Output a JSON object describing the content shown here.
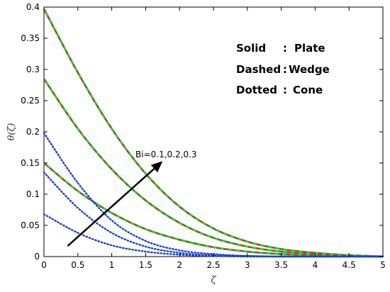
{
  "chart_data": {
    "type": "line",
    "xlabel": "ζ",
    "ylabel": "θ(ζ)",
    "xlim": [
      0,
      5
    ],
    "ylim": [
      0,
      0.4
    ],
    "xticks": [
      "0",
      "0.5",
      "1",
      "1.5",
      "2",
      "2.5",
      "3",
      "3.5",
      "4",
      "4.5",
      "5"
    ],
    "yticks": [
      "0",
      "0.05",
      "0.1",
      "0.15",
      "0.2",
      "0.25",
      "0.3",
      "0.35",
      "0.4"
    ],
    "grid": false,
    "legend": [
      {
        "style": "Solid",
        "sep": ":",
        "geometry": "Plate"
      },
      {
        "style": "Dashed",
        "sep": ":",
        "geometry": "Wedge"
      },
      {
        "style": "Dotted",
        "sep": ":",
        "geometry": "Cone"
      }
    ],
    "annotation": {
      "text": "Bi=0.1,0.2,0.3",
      "from": [
        0.35,
        0.017
      ],
      "to": [
        1.75,
        0.153
      ]
    },
    "x": [
      0,
      0.5,
      1,
      1.5,
      2,
      2.5,
      3,
      3.5,
      4,
      4.5,
      5
    ],
    "series": [
      {
        "geometry": "Plate",
        "style": "solid",
        "color": "#2ecc40",
        "Bi": 0.1,
        "values": [
          0.15,
          0.105,
          0.07,
          0.044,
          0.027,
          0.015,
          0.008,
          0.004,
          0.002,
          0.001,
          0.0
        ]
      },
      {
        "geometry": "Plate",
        "style": "solid",
        "color": "#2ecc40",
        "Bi": 0.2,
        "values": [
          0.285,
          0.205,
          0.14,
          0.09,
          0.054,
          0.03,
          0.016,
          0.008,
          0.004,
          0.002,
          0.0
        ]
      },
      {
        "geometry": "Plate",
        "style": "solid",
        "color": "#2ecc40",
        "Bi": 0.3,
        "values": [
          0.397,
          0.295,
          0.205,
          0.133,
          0.08,
          0.045,
          0.024,
          0.012,
          0.006,
          0.002,
          0.0
        ]
      },
      {
        "geometry": "Wedge",
        "style": "dashed",
        "color": "#c0392b",
        "Bi": 0.1,
        "values": [
          0.15,
          0.105,
          0.07,
          0.044,
          0.027,
          0.015,
          0.008,
          0.004,
          0.002,
          0.001,
          0.0
        ]
      },
      {
        "geometry": "Wedge",
        "style": "dashed",
        "color": "#c0392b",
        "Bi": 0.2,
        "values": [
          0.285,
          0.205,
          0.14,
          0.09,
          0.054,
          0.03,
          0.016,
          0.008,
          0.004,
          0.002,
          0.0
        ]
      },
      {
        "geometry": "Wedge",
        "style": "dashed",
        "color": "#c0392b",
        "Bi": 0.3,
        "values": [
          0.397,
          0.295,
          0.205,
          0.133,
          0.08,
          0.045,
          0.024,
          0.012,
          0.006,
          0.002,
          0.0
        ]
      },
      {
        "geometry": "Cone",
        "style": "dotted",
        "color": "#1f3fcf",
        "Bi": 0.1,
        "values": [
          0.068,
          0.038,
          0.018,
          0.008,
          0.003,
          0.001,
          0.0,
          0.0,
          0.0,
          0.0,
          0.0
        ]
      },
      {
        "geometry": "Cone",
        "style": "dotted",
        "color": "#1f3fcf",
        "Bi": 0.2,
        "values": [
          0.135,
          0.078,
          0.038,
          0.016,
          0.006,
          0.002,
          0.001,
          0.0,
          0.0,
          0.0,
          0.0
        ]
      },
      {
        "geometry": "Cone",
        "style": "dotted",
        "color": "#1f3fcf",
        "Bi": 0.3,
        "values": [
          0.198,
          0.118,
          0.058,
          0.025,
          0.01,
          0.004,
          0.001,
          0.0,
          0.0,
          0.0,
          0.0
        ]
      }
    ]
  }
}
